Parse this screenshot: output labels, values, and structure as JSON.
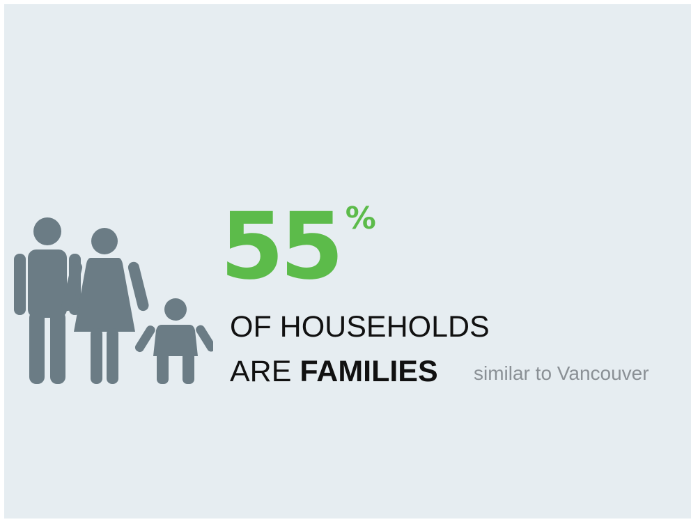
{
  "stat": {
    "value": "55",
    "unit": "%",
    "line1": "OF HOUSEHOLDS",
    "line2_prefix": "ARE",
    "line2_emphasis": "FAMILIES",
    "comparison": "similar to Vancouver"
  },
  "colors": {
    "accent_green": "#5cbb4a",
    "icon_gray": "#6b7c85",
    "text_dark": "#111111",
    "text_muted": "#8a9095",
    "background": "#e6edf1"
  },
  "icons": [
    "man-icon",
    "woman-icon",
    "child-icon"
  ]
}
